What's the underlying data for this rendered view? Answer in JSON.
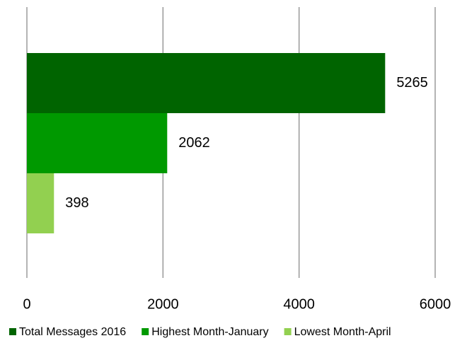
{
  "chart_data": {
    "type": "bar",
    "orientation": "horizontal",
    "categories": [
      null
    ],
    "series": [
      {
        "name": "Total Messages 2016",
        "color": "#006400",
        "values": [
          5265
        ]
      },
      {
        "name": "Highest Month-January",
        "color": "#009900",
        "values": [
          2062
        ]
      },
      {
        "name": "Lowest Month-April",
        "color": "#92d050",
        "values": [
          398
        ]
      }
    ],
    "xlim": [
      0,
      6000
    ],
    "xticks": [
      0,
      2000,
      4000,
      6000
    ],
    "grid": true,
    "legend": "bottom",
    "data_labels": true
  }
}
